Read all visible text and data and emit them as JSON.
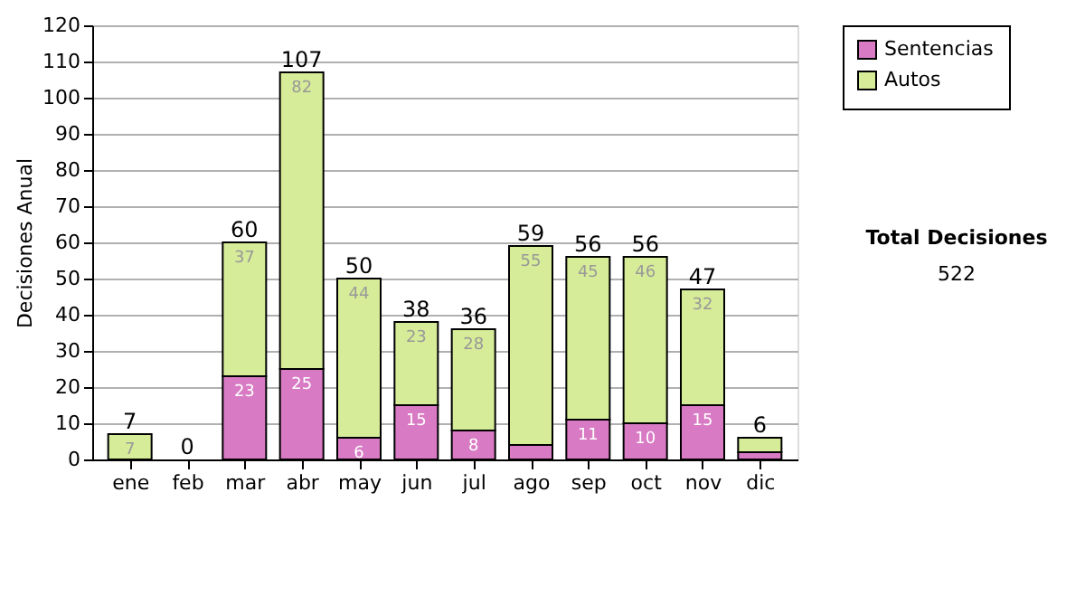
{
  "chart_data": {
    "type": "bar",
    "stacked": true,
    "ylabel": "Decisiones Anual",
    "categories": [
      "ene",
      "feb",
      "mar",
      "abr",
      "may",
      "jun",
      "jul",
      "ago",
      "sep",
      "oct",
      "nov",
      "dic"
    ],
    "series": [
      {
        "name": "Sentencias",
        "color": "#d87ac4",
        "values": [
          0,
          0,
          23,
          25,
          6,
          15,
          8,
          4,
          11,
          10,
          15,
          2
        ],
        "value_labels": [
          null,
          null,
          "23",
          "25",
          "6",
          "15",
          "8",
          null,
          "11",
          "10",
          "15",
          null
        ]
      },
      {
        "name": "Autos",
        "color": "#d6ec98",
        "values": [
          7,
          0,
          37,
          82,
          44,
          23,
          28,
          55,
          45,
          46,
          32,
          4
        ],
        "value_labels": [
          "7",
          null,
          "37",
          "82",
          "44",
          "23",
          "28",
          "55",
          "45",
          "46",
          "32",
          null
        ]
      }
    ],
    "totals": [
      "7",
      "0",
      "60",
      "107",
      "50",
      "38",
      "36",
      "59",
      "56",
      "56",
      "47",
      "6"
    ],
    "ylim": [
      0,
      120
    ],
    "yticks": [
      0,
      10,
      20,
      30,
      40,
      50,
      60,
      70,
      80,
      90,
      100,
      110,
      120
    ],
    "grid": "y",
    "legend": "right",
    "annotations": [
      "Total Decisiones",
      "522"
    ]
  }
}
